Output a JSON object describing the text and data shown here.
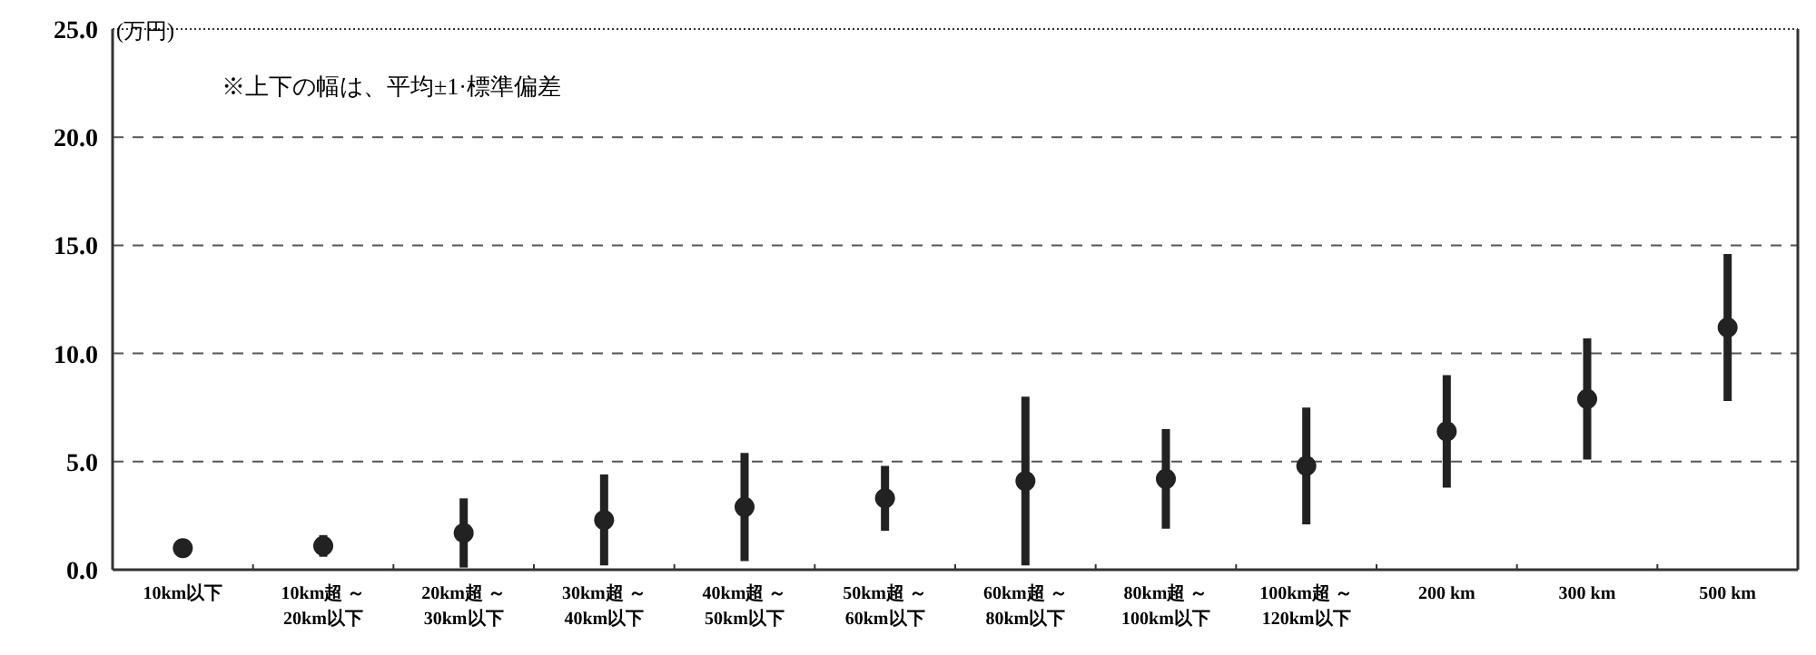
{
  "chart_data": {
    "type": "scatter",
    "ylabel": "(万円)",
    "annotations": [
      "※上下の幅は、平均±1·標準偏差"
    ],
    "categories": [
      "10km以下",
      "10km超 ～\n20km以下",
      "20km超 ～\n30km以下",
      "30km超 ～\n40km以下",
      "40km超 ～\n50km以下",
      "50km超 ～\n60km以下",
      "60km超 ～\n80km以下",
      "80km超 ～\n100km以下",
      "100km超 ～\n120km以下",
      "200 km",
      "300 km",
      "500 km"
    ],
    "values": [
      1.0,
      1.1,
      1.7,
      2.3,
      2.9,
      3.3,
      4.1,
      4.2,
      4.8,
      6.4,
      7.9,
      11.2
    ],
    "errors": [
      null,
      0.5,
      1.6,
      2.1,
      2.5,
      1.5,
      3.9,
      2.3,
      2.7,
      2.6,
      2.8,
      3.4
    ],
    "color": "#222222",
    "marker": "circle",
    "grid": "y",
    "ylim": [
      0,
      25
    ],
    "yticks": [
      {
        "value": 0,
        "label": "0.0"
      },
      {
        "value": 5,
        "label": "5.0"
      },
      {
        "value": 10,
        "label": "10.0"
      },
      {
        "value": 15,
        "label": "15.0"
      },
      {
        "value": 20,
        "label": "20.0"
      },
      {
        "value": 25,
        "label": "25.0"
      }
    ]
  }
}
